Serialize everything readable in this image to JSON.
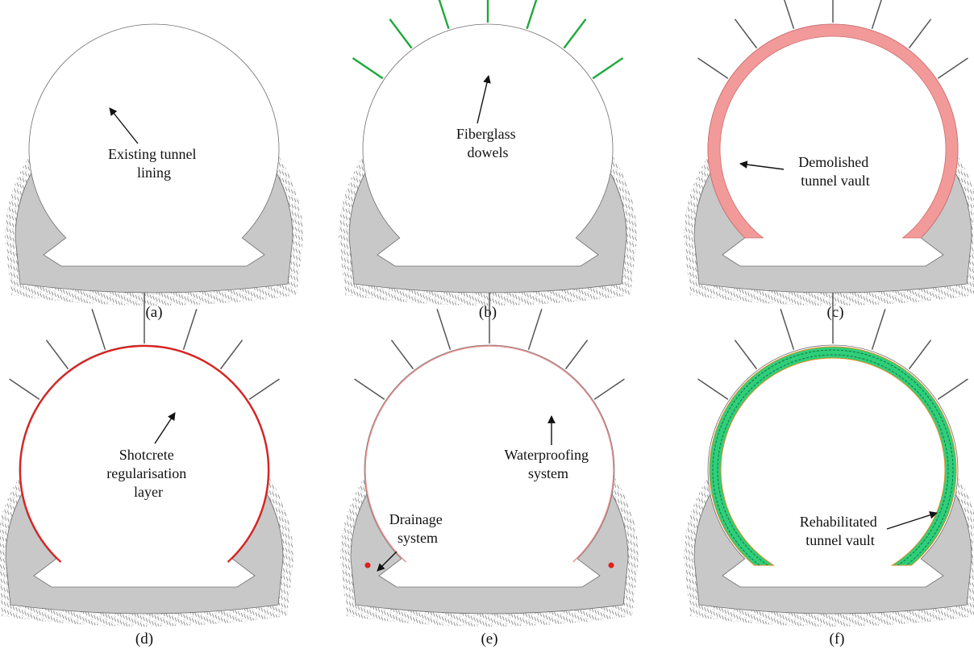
{
  "figure": {
    "colors": {
      "lining": "#c8c8c8",
      "lining_edge": "#6e6e6e",
      "rock_hatch": "#8c8c8c",
      "dowel_new": "#1fa83a",
      "dowel_existing": "#555555",
      "demolished": "#f29a9a",
      "shotcrete": "#e0201e",
      "waterproofing": "#e88a8a",
      "drainage": "#e0201e",
      "rehabilitated": "#2fcf7a",
      "rehabilitated_rebar": "#1a6e45",
      "rehabilitated_edge": "#e08a20"
    },
    "panels": [
      {
        "id": "a",
        "caption": "(a)",
        "label_lines": [
          "Existing tunnel",
          "lining"
        ],
        "dowels": "none",
        "layer": "none"
      },
      {
        "id": "b",
        "caption": "(b)",
        "label_lines": [
          "Fiberglass",
          "dowels"
        ],
        "dowels": "new",
        "layer": "none"
      },
      {
        "id": "c",
        "caption": "(c)",
        "label_lines": [
          "Demolished",
          "tunnel vault"
        ],
        "dowels": "existing",
        "layer": "demolished"
      },
      {
        "id": "d",
        "caption": "(d)",
        "label_lines": [
          "Shotcrete",
          "regularisation",
          "layer"
        ],
        "dowels": "existing",
        "layer": "shotcrete"
      },
      {
        "id": "e",
        "caption": "(e)",
        "label_lines": [
          "Waterproofing",
          "system"
        ],
        "label2_lines": [
          "Drainage",
          "system"
        ],
        "dowels": "existing",
        "layer": "waterproofing"
      },
      {
        "id": "f",
        "caption": "(f)",
        "label_lines": [
          "Rehabilitated",
          "tunnel vault"
        ],
        "dowels": "existing",
        "layer": "rehabilitated"
      }
    ]
  }
}
